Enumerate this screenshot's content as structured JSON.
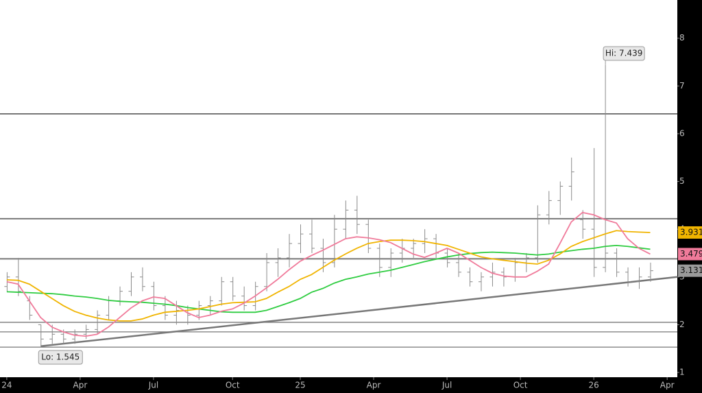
{
  "chart_data": {
    "type": "ohlc",
    "x": [
      0,
      2,
      4,
      6,
      8,
      10,
      12,
      14,
      16,
      18,
      20,
      22,
      24,
      26,
      28,
      30,
      32,
      34,
      36,
      38,
      40,
      42,
      44,
      46,
      48,
      50,
      52,
      54,
      56,
      58,
      60,
      62,
      64,
      66,
      68,
      70,
      72,
      74,
      76,
      78,
      80,
      82,
      84,
      86,
      88,
      90,
      92,
      94,
      96,
      98,
      100,
      102,
      104,
      106,
      108,
      110,
      112,
      114
    ],
    "open": [
      2.8,
      3.0,
      2.5,
      2.0,
      1.7,
      1.8,
      1.7,
      1.8,
      1.9,
      2.2,
      2.5,
      2.7,
      3.0,
      2.8,
      2.4,
      2.2,
      2.3,
      2.2,
      2.4,
      2.5,
      2.9,
      2.6,
      2.4,
      2.8,
      3.3,
      3.4,
      3.7,
      3.9,
      3.6,
      3.3,
      4.0,
      4.4,
      4.1,
      3.6,
      3.2,
      3.5,
      3.6,
      3.7,
      3.8,
      3.5,
      3.3,
      3.1,
      2.9,
      3.0,
      3.1,
      3.0,
      3.3,
      3.4,
      4.3,
      4.6,
      4.9,
      4.2,
      4.0,
      3.2,
      3.5,
      3.1,
      2.9,
      3.0
    ],
    "high": [
      3.1,
      3.4,
      2.6,
      2.0,
      2.0,
      1.9,
      1.9,
      2.0,
      2.3,
      2.6,
      2.8,
      3.1,
      3.2,
      2.9,
      2.6,
      2.5,
      2.4,
      2.5,
      2.6,
      3.0,
      3.0,
      2.8,
      2.9,
      3.5,
      3.6,
      3.9,
      4.1,
      4.2,
      3.8,
      4.3,
      4.6,
      4.7,
      4.2,
      3.7,
      3.6,
      3.8,
      3.8,
      4.0,
      3.9,
      3.6,
      3.5,
      3.2,
      3.1,
      3.3,
      3.2,
      3.4,
      3.5,
      4.5,
      4.8,
      5.0,
      5.5,
      4.4,
      5.7,
      7.439,
      3.6,
      3.2,
      3.2,
      3.3
    ],
    "low": [
      2.7,
      2.6,
      2.1,
      1.545,
      1.6,
      1.6,
      1.6,
      1.7,
      1.8,
      2.1,
      2.4,
      2.6,
      2.7,
      2.3,
      2.1,
      2.0,
      2.0,
      2.1,
      2.2,
      2.4,
      2.5,
      2.3,
      2.3,
      2.7,
      3.0,
      3.2,
      3.5,
      3.5,
      3.1,
      3.2,
      3.8,
      3.9,
      3.5,
      3.0,
      3.0,
      3.3,
      3.4,
      3.5,
      3.4,
      3.2,
      3.0,
      2.8,
      2.7,
      2.8,
      2.8,
      2.9,
      3.1,
      3.3,
      4.1,
      4.3,
      4.6,
      3.8,
      3.0,
      3.1,
      3.0,
      2.8,
      2.75,
      2.9
    ],
    "close": [
      3.0,
      2.7,
      2.2,
      1.7,
      1.8,
      1.7,
      1.8,
      1.9,
      2.2,
      2.5,
      2.7,
      3.0,
      2.8,
      2.4,
      2.2,
      2.3,
      2.2,
      2.4,
      2.5,
      2.9,
      2.6,
      2.4,
      2.8,
      3.3,
      3.4,
      3.7,
      3.9,
      3.6,
      3.3,
      4.0,
      4.4,
      4.1,
      3.6,
      3.2,
      3.5,
      3.6,
      3.7,
      3.8,
      3.5,
      3.3,
      3.1,
      2.9,
      3.0,
      3.1,
      3.0,
      3.3,
      3.4,
      4.3,
      4.6,
      4.9,
      5.2,
      4.0,
      3.2,
      3.5,
      3.1,
      2.9,
      3.0,
      3.131
    ],
    "bar_color": "#8a8a8a",
    "lines": [
      {
        "color": "#2ecc40",
        "values": [
          2.69,
          2.68,
          2.67,
          2.66,
          2.65,
          2.63,
          2.6,
          2.58,
          2.55,
          2.51,
          2.49,
          2.48,
          2.47,
          2.45,
          2.43,
          2.4,
          2.36,
          2.33,
          2.3,
          2.27,
          2.26,
          2.26,
          2.26,
          2.3,
          2.38,
          2.46,
          2.55,
          2.68,
          2.76,
          2.87,
          2.95,
          3.0,
          3.06,
          3.1,
          3.14,
          3.2,
          3.26,
          3.32,
          3.37,
          3.42,
          3.46,
          3.49,
          3.51,
          3.52,
          3.51,
          3.5,
          3.48,
          3.46,
          3.48,
          3.52,
          3.55,
          3.58,
          3.6,
          3.64,
          3.66,
          3.64,
          3.61,
          3.58
        ]
      },
      {
        "color": "#f0b400",
        "values": [
          2.94,
          2.93,
          2.85,
          2.7,
          2.55,
          2.4,
          2.28,
          2.2,
          2.14,
          2.1,
          2.08,
          2.08,
          2.12,
          2.2,
          2.26,
          2.28,
          2.3,
          2.33,
          2.38,
          2.43,
          2.46,
          2.47,
          2.48,
          2.55,
          2.68,
          2.8,
          2.95,
          3.05,
          3.2,
          3.35,
          3.48,
          3.6,
          3.7,
          3.74,
          3.77,
          3.77,
          3.76,
          3.74,
          3.7,
          3.66,
          3.58,
          3.5,
          3.42,
          3.38,
          3.35,
          3.32,
          3.29,
          3.27,
          3.35,
          3.48,
          3.64,
          3.74,
          3.82,
          3.9,
          3.97,
          3.95,
          3.94,
          3.931
        ]
      },
      {
        "color": "#f07a9a",
        "values": [
          2.9,
          2.85,
          2.5,
          2.15,
          1.95,
          1.85,
          1.78,
          1.76,
          1.8,
          1.95,
          2.15,
          2.35,
          2.5,
          2.58,
          2.55,
          2.4,
          2.25,
          2.15,
          2.2,
          2.28,
          2.33,
          2.45,
          2.6,
          2.77,
          2.95,
          3.15,
          3.33,
          3.45,
          3.56,
          3.68,
          3.8,
          3.84,
          3.82,
          3.78,
          3.72,
          3.6,
          3.48,
          3.41,
          3.5,
          3.6,
          3.5,
          3.35,
          3.2,
          3.08,
          3.02,
          3.0,
          3.0,
          3.12,
          3.27,
          3.7,
          4.15,
          4.35,
          4.3,
          4.2,
          4.13,
          3.8,
          3.6,
          3.479
        ]
      }
    ],
    "levels": [
      6.415,
      4.22,
      3.38,
      2.05,
      1.85,
      1.53
    ],
    "level_color": "#777777",
    "trendline": {
      "x": [
        6,
        118.8
      ],
      "y": [
        1.55,
        3.0
      ]
    },
    "price_labels": [
      {
        "value": 3.931,
        "color": "#f0b400"
      },
      {
        "value": 3.479,
        "color": "#f07a9a"
      },
      {
        "value": 3.131,
        "color": "#9a9a9a"
      }
    ],
    "hi_label": "Hi: 7.439",
    "lo_label": "Lo: 1.545",
    "xlim": [
      -1.2,
      118.8
    ],
    "ylim": [
      0.9,
      8.8
    ],
    "yticks": [
      1,
      2,
      3,
      4,
      5,
      6,
      7,
      8
    ],
    "xticks": [
      {
        "value": 0,
        "label": "24"
      },
      {
        "value": 13,
        "label": "Apr"
      },
      {
        "value": 26,
        "label": "Jul"
      },
      {
        "value": 40,
        "label": "Oct"
      },
      {
        "value": 52,
        "label": "25"
      },
      {
        "value": 65,
        "label": "Apr"
      },
      {
        "value": 78,
        "label": "Jul"
      },
      {
        "value": 91,
        "label": "Oct"
      },
      {
        "value": 104,
        "label": "26"
      },
      {
        "value": 117,
        "label": "Apr"
      }
    ]
  }
}
